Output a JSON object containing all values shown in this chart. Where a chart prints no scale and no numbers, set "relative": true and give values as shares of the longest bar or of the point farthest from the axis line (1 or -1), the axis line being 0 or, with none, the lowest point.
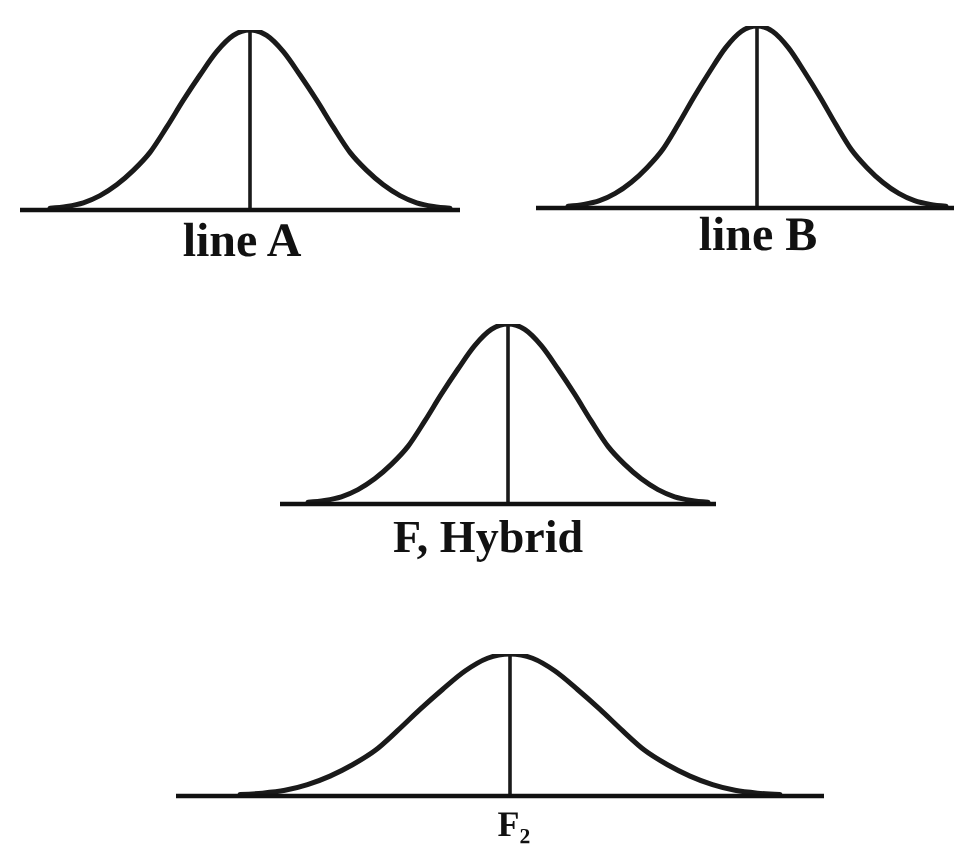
{
  "chart_data": [
    {
      "type": "line",
      "xlabel": "line A",
      "categories": [
        null,
        null,
        null,
        null,
        null,
        null,
        null,
        null,
        null,
        null,
        null,
        null,
        null,
        null,
        null,
        null,
        null,
        null,
        null,
        null,
        null,
        null,
        null,
        null,
        null
      ],
      "values": [
        0.01,
        0.02,
        0.04,
        0.08,
        0.14,
        0.22,
        0.32,
        0.46,
        0.61,
        0.75,
        0.88,
        0.97,
        1,
        0.97,
        0.88,
        0.75,
        0.61,
        0.46,
        0.32,
        0.22,
        0.14,
        0.08,
        0.04,
        0.02,
        0.01
      ],
      "color": "#1a1a1a",
      "relative": true
    },
    {
      "type": "line",
      "xlabel": "line B",
      "categories": [
        null,
        null,
        null,
        null,
        null,
        null,
        null,
        null,
        null,
        null,
        null,
        null,
        null,
        null,
        null,
        null,
        null,
        null,
        null,
        null,
        null,
        null,
        null,
        null,
        null
      ],
      "values": [
        0.01,
        0.02,
        0.04,
        0.08,
        0.14,
        0.22,
        0.32,
        0.46,
        0.61,
        0.75,
        0.88,
        0.97,
        1,
        0.97,
        0.88,
        0.75,
        0.61,
        0.46,
        0.32,
        0.22,
        0.14,
        0.08,
        0.04,
        0.02,
        0.01
      ],
      "color": "#1a1a1a",
      "relative": true
    },
    {
      "type": "line",
      "xlabel": "F, Hybrid",
      "categories": [
        null,
        null,
        null,
        null,
        null,
        null,
        null,
        null,
        null,
        null,
        null,
        null,
        null,
        null,
        null,
        null,
        null,
        null,
        null,
        null,
        null,
        null,
        null,
        null,
        null
      ],
      "values": [
        0.01,
        0.02,
        0.04,
        0.08,
        0.14,
        0.22,
        0.32,
        0.46,
        0.61,
        0.75,
        0.88,
        0.97,
        1,
        0.97,
        0.88,
        0.75,
        0.61,
        0.46,
        0.32,
        0.22,
        0.14,
        0.08,
        0.04,
        0.02,
        0.01
      ],
      "color": "#1a1a1a",
      "relative": true
    },
    {
      "type": "line",
      "xlabel": "F₂",
      "categories": [
        null,
        null,
        null,
        null,
        null,
        null,
        null,
        null,
        null,
        null,
        null,
        null,
        null,
        null,
        null,
        null,
        null,
        null,
        null,
        null,
        null,
        null,
        null,
        null,
        null
      ],
      "values": [
        0.01,
        0.02,
        0.04,
        0.08,
        0.14,
        0.22,
        0.32,
        0.46,
        0.61,
        0.75,
        0.88,
        0.97,
        1,
        0.97,
        0.88,
        0.75,
        0.61,
        0.46,
        0.32,
        0.22,
        0.14,
        0.08,
        0.04,
        0.02,
        0.01
      ],
      "color": "#1a1a1a",
      "relative": true
    }
  ]
}
